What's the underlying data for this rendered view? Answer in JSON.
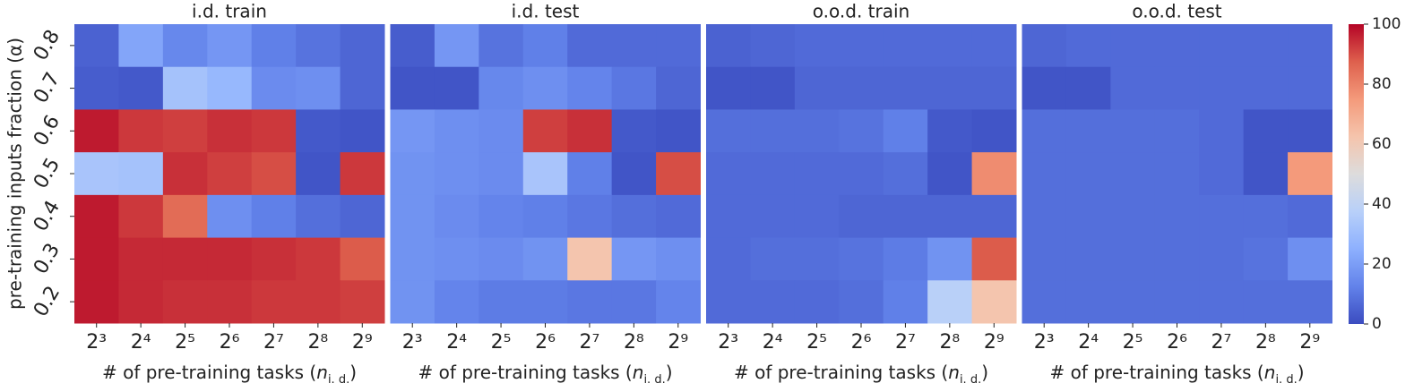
{
  "chart_data": [
    {
      "type": "heatmap",
      "title": "i.d. train",
      "x_label": [
        "# of pre-training tasks (",
        "n",
        "i. d.",
        ")"
      ],
      "y_label": "pre-training inputs fraction (α)",
      "categories": [
        "2³",
        "2⁴",
        "2⁵",
        "2⁶",
        "2⁷",
        "2⁸",
        "2⁹"
      ],
      "y_categories": [
        "0.8",
        "0.7",
        "0.6",
        "0.5",
        "0.4",
        "0.3",
        "0.2"
      ],
      "values": [
        [
          5,
          22,
          14,
          18,
          12,
          9,
          6
        ],
        [
          4,
          3,
          32,
          28,
          15,
          16,
          6
        ],
        [
          97,
          93,
          92,
          94,
          93,
          3,
          2
        ],
        [
          33,
          32,
          94,
          92,
          90,
          2,
          93
        ],
        [
          97,
          93,
          85,
          16,
          12,
          8,
          6
        ],
        [
          97,
          95,
          95,
          95,
          94,
          93,
          88
        ],
        [
          97,
          95,
          94,
          94,
          93,
          93,
          92
        ]
      ]
    },
    {
      "type": "heatmap",
      "title": "i.d. test",
      "x_label": [
        "# of pre-training tasks (",
        "n",
        "i. d.",
        ")"
      ],
      "categories": [
        "2³",
        "2⁴",
        "2⁵",
        "2⁶",
        "2⁷",
        "2⁸",
        "2⁹"
      ],
      "values": [
        [
          4,
          18,
          9,
          12,
          7,
          7,
          7
        ],
        [
          2,
          2,
          14,
          16,
          13,
          10,
          6
        ],
        [
          18,
          16,
          15,
          92,
          94,
          3,
          2
        ],
        [
          17,
          16,
          15,
          33,
          12,
          2,
          90
        ],
        [
          17,
          15,
          13,
          12,
          10,
          8,
          7
        ],
        [
          17,
          16,
          15,
          17,
          62,
          18,
          16
        ],
        [
          17,
          13,
          11,
          11,
          10,
          10,
          13
        ]
      ]
    },
    {
      "type": "heatmap",
      "title": "o.o.d. train",
      "x_label": [
        "# of pre-training tasks (",
        "n",
        "i. d.",
        ")"
      ],
      "categories": [
        "2³",
        "2⁴",
        "2⁵",
        "2⁶",
        "2⁷",
        "2⁸",
        "2⁹"
      ],
      "values": [
        [
          5,
          6,
          7,
          7,
          7,
          7,
          7
        ],
        [
          2,
          2,
          6,
          6,
          6,
          6,
          6
        ],
        [
          8,
          8,
          8,
          9,
          12,
          3,
          2
        ],
        [
          7,
          7,
          7,
          7,
          8,
          2,
          78
        ],
        [
          7,
          7,
          7,
          6,
          6,
          6,
          6
        ],
        [
          7,
          8,
          8,
          9,
          11,
          17,
          88
        ],
        [
          7,
          7,
          7,
          8,
          12,
          38,
          62
        ]
      ]
    },
    {
      "type": "heatmap",
      "title": "o.o.d. test",
      "x_label": [
        "# of pre-training tasks (",
        "n",
        "i. d.",
        ")"
      ],
      "categories": [
        "2³",
        "2⁴",
        "2⁵",
        "2⁶",
        "2⁷",
        "2⁸",
        "2⁹"
      ],
      "values": [
        [
          6,
          7,
          7,
          7,
          7,
          7,
          7
        ],
        [
          2,
          2,
          7,
          7,
          7,
          7,
          7
        ],
        [
          8,
          8,
          8,
          8,
          7,
          2,
          2
        ],
        [
          8,
          8,
          8,
          8,
          7,
          2,
          75
        ],
        [
          8,
          8,
          8,
          8,
          8,
          8,
          7
        ],
        [
          8,
          8,
          8,
          8,
          8,
          9,
          16
        ],
        [
          8,
          8,
          8,
          8,
          8,
          8,
          8
        ]
      ]
    }
  ],
  "colorbar": {
    "colormap": "coolwarm",
    "zlim": [
      0,
      100
    ],
    "zticks": [
      0,
      20,
      40,
      60,
      80,
      100
    ]
  }
}
